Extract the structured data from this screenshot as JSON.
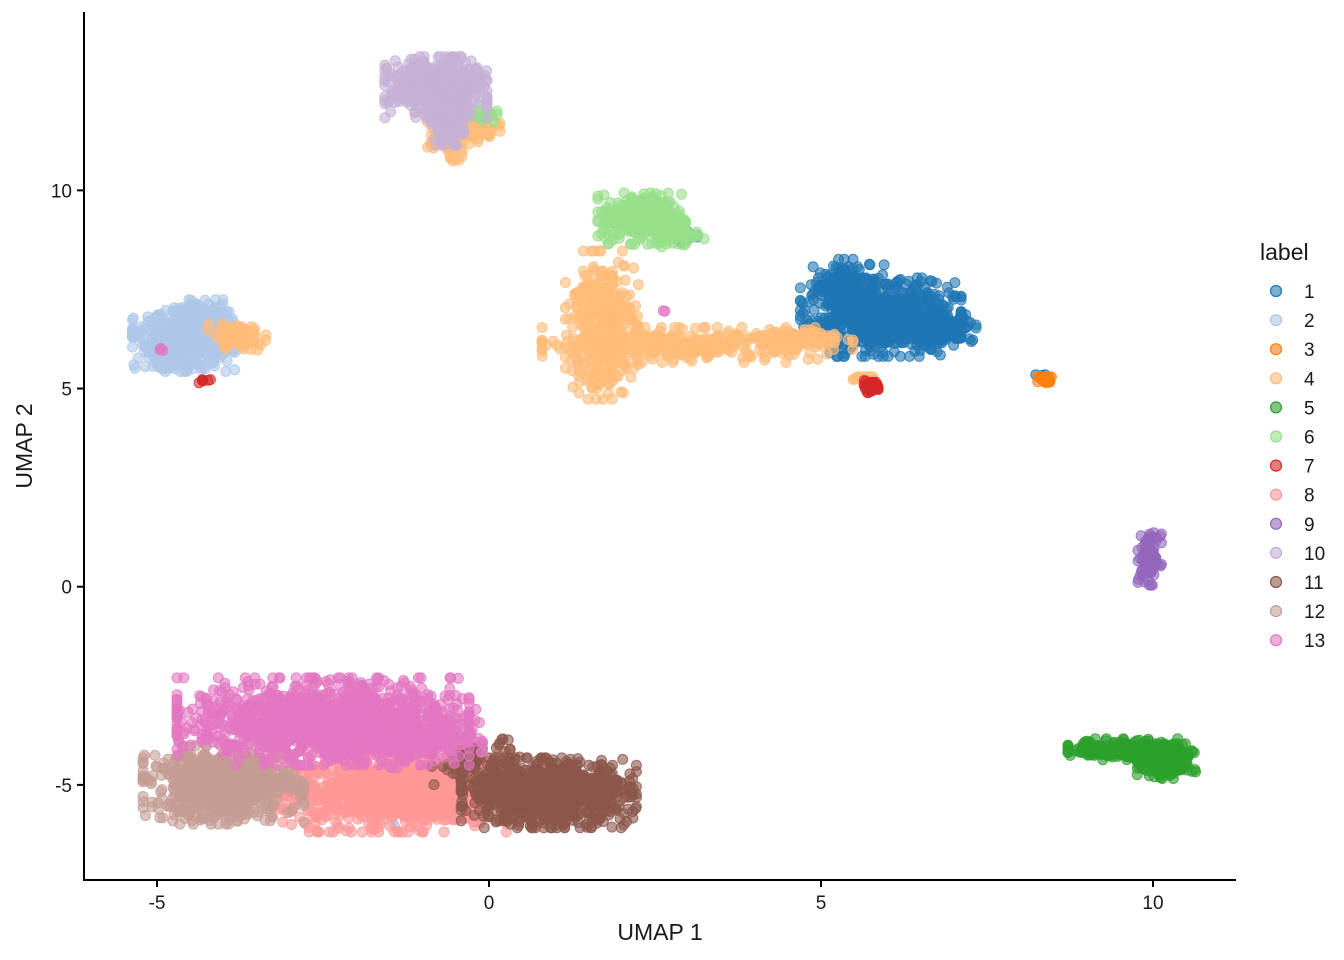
{
  "chart_data": {
    "type": "scatter",
    "title": "",
    "xlabel": "UMAP 1",
    "ylabel": "UMAP 2",
    "xlim": [
      -6.1,
      11.25
    ],
    "ylim": [
      -7.4,
      14.5
    ],
    "xticks": [
      -5,
      0,
      5,
      10
    ],
    "yticks": [
      -5,
      0,
      5,
      10
    ],
    "xtick_labels": [
      "-5",
      "0",
      "5",
      "10"
    ],
    "ytick_labels": [
      "-5",
      "0",
      "5",
      "10"
    ],
    "grid": false,
    "legend": {
      "title": "label",
      "position": "right"
    },
    "series": [
      {
        "name": "1",
        "color": "#1f77b4",
        "clusters": [
          {
            "cx": 5.9,
            "cy": 6.8,
            "sx": 0.55,
            "sy": 0.45,
            "n": 700
          },
          {
            "cx": 6.7,
            "cy": 6.55,
            "sx": 0.3,
            "sy": 0.18,
            "n": 220
          },
          {
            "cx": 5.4,
            "cy": 7.6,
            "sx": 0.25,
            "sy": 0.3,
            "n": 140
          },
          {
            "cx": 3.0,
            "cy": 8.8,
            "sx": 0.1,
            "sy": 0.08,
            "n": 10
          },
          {
            "cx": 8.3,
            "cy": 5.3,
            "sx": 0.05,
            "sy": 0.04,
            "n": 4
          }
        ]
      },
      {
        "name": "2",
        "color": "#aec7e8",
        "clusters": [
          {
            "cx": -4.6,
            "cy": 6.2,
            "sx": 0.35,
            "sy": 0.35,
            "n": 520
          },
          {
            "cx": -4.3,
            "cy": 6.8,
            "sx": 0.2,
            "sy": 0.2,
            "n": 120
          },
          {
            "cx": -1.5,
            "cy": -6.0,
            "sx": 0.05,
            "sy": 0.05,
            "n": 2
          }
        ]
      },
      {
        "name": "3",
        "color": "#ff7f0e",
        "clusters": [
          {
            "cx": 8.4,
            "cy": 5.22,
            "sx": 0.07,
            "sy": 0.05,
            "n": 18
          }
        ]
      },
      {
        "name": "4",
        "color": "#ffbb78",
        "clusters": [
          {
            "cx": 1.7,
            "cy": 6.6,
            "sx": 0.25,
            "sy": 0.85,
            "n": 380
          },
          {
            "cx": 3.0,
            "cy": 6.1,
            "sx": 1.0,
            "sy": 0.2,
            "n": 320
          },
          {
            "cx": 4.6,
            "cy": 6.25,
            "sx": 0.4,
            "sy": 0.12,
            "n": 90
          },
          {
            "cx": -3.8,
            "cy": 6.3,
            "sx": 0.2,
            "sy": 0.15,
            "n": 90
          },
          {
            "cx": -0.6,
            "cy": 11.4,
            "sx": 0.15,
            "sy": 0.3,
            "n": 90
          },
          {
            "cx": -0.1,
            "cy": 11.6,
            "sx": 0.12,
            "sy": 0.18,
            "n": 40
          },
          {
            "cx": 5.6,
            "cy": 5.25,
            "sx": 0.1,
            "sy": 0.05,
            "n": 12
          }
        ]
      },
      {
        "name": "5",
        "color": "#2ca02c",
        "clusters": [
          {
            "cx": 9.6,
            "cy": -4.1,
            "sx": 0.4,
            "sy": 0.12,
            "n": 220
          },
          {
            "cx": 10.2,
            "cy": -4.4,
            "sx": 0.2,
            "sy": 0.2,
            "n": 260
          },
          {
            "cx": -1.9,
            "cy": -2.55,
            "sx": 0.04,
            "sy": 0.04,
            "n": 3
          }
        ]
      },
      {
        "name": "6",
        "color": "#98df8a",
        "clusters": [
          {
            "cx": 2.3,
            "cy": 9.3,
            "sx": 0.3,
            "sy": 0.3,
            "n": 300
          },
          {
            "cx": 2.8,
            "cy": 8.9,
            "sx": 0.2,
            "sy": 0.15,
            "n": 60
          },
          {
            "cx": -0.1,
            "cy": 11.9,
            "sx": 0.1,
            "sy": 0.1,
            "n": 20
          }
        ]
      },
      {
        "name": "7",
        "color": "#d62728",
        "clusters": [
          {
            "cx": 5.75,
            "cy": 5.05,
            "sx": 0.07,
            "sy": 0.07,
            "n": 50
          },
          {
            "cx": -4.3,
            "cy": 5.2,
            "sx": 0.08,
            "sy": 0.05,
            "n": 6
          }
        ]
      },
      {
        "name": "8",
        "color": "#ff9896",
        "clusters": [
          {
            "cx": -1.5,
            "cy": -5.2,
            "sx": 0.8,
            "sy": 0.45,
            "n": 900
          },
          {
            "cx": -0.4,
            "cy": -5.0,
            "sx": 0.4,
            "sy": 0.4,
            "n": 220
          }
        ]
      },
      {
        "name": "9",
        "color": "#9467bd",
        "clusters": [
          {
            "cx": 9.95,
            "cy": 0.7,
            "sx": 0.08,
            "sy": 0.3,
            "n": 100
          }
        ]
      },
      {
        "name": "10",
        "color": "#c5b0d5",
        "clusters": [
          {
            "cx": -0.8,
            "cy": 12.6,
            "sx": 0.35,
            "sy": 0.35,
            "n": 520
          },
          {
            "cx": -0.6,
            "cy": 11.8,
            "sx": 0.15,
            "sy": 0.3,
            "n": 120
          }
        ]
      },
      {
        "name": "11",
        "color": "#8c564b",
        "clusters": [
          {
            "cx": 0.9,
            "cy": -5.2,
            "sx": 0.6,
            "sy": 0.4,
            "n": 900
          },
          {
            "cx": -0.2,
            "cy": -4.4,
            "sx": 0.3,
            "sy": 0.3,
            "n": 80
          }
        ]
      },
      {
        "name": "12",
        "color": "#c49c94",
        "clusters": [
          {
            "cx": -4.0,
            "cy": -5.0,
            "sx": 0.55,
            "sy": 0.45,
            "n": 700
          }
        ]
      },
      {
        "name": "13",
        "color": "#e377c2",
        "clusters": [
          {
            "cx": -2.5,
            "cy": -3.4,
            "sx": 1.0,
            "sy": 0.5,
            "n": 1200
          },
          {
            "cx": -1.2,
            "cy": -3.8,
            "sx": 0.5,
            "sy": 0.35,
            "n": 260
          },
          {
            "cx": -4.95,
            "cy": 5.95,
            "sx": 0.05,
            "sy": 0.05,
            "n": 3
          },
          {
            "cx": 2.6,
            "cy": 7.0,
            "sx": 0.05,
            "sy": 0.05,
            "n": 2
          }
        ]
      }
    ]
  }
}
